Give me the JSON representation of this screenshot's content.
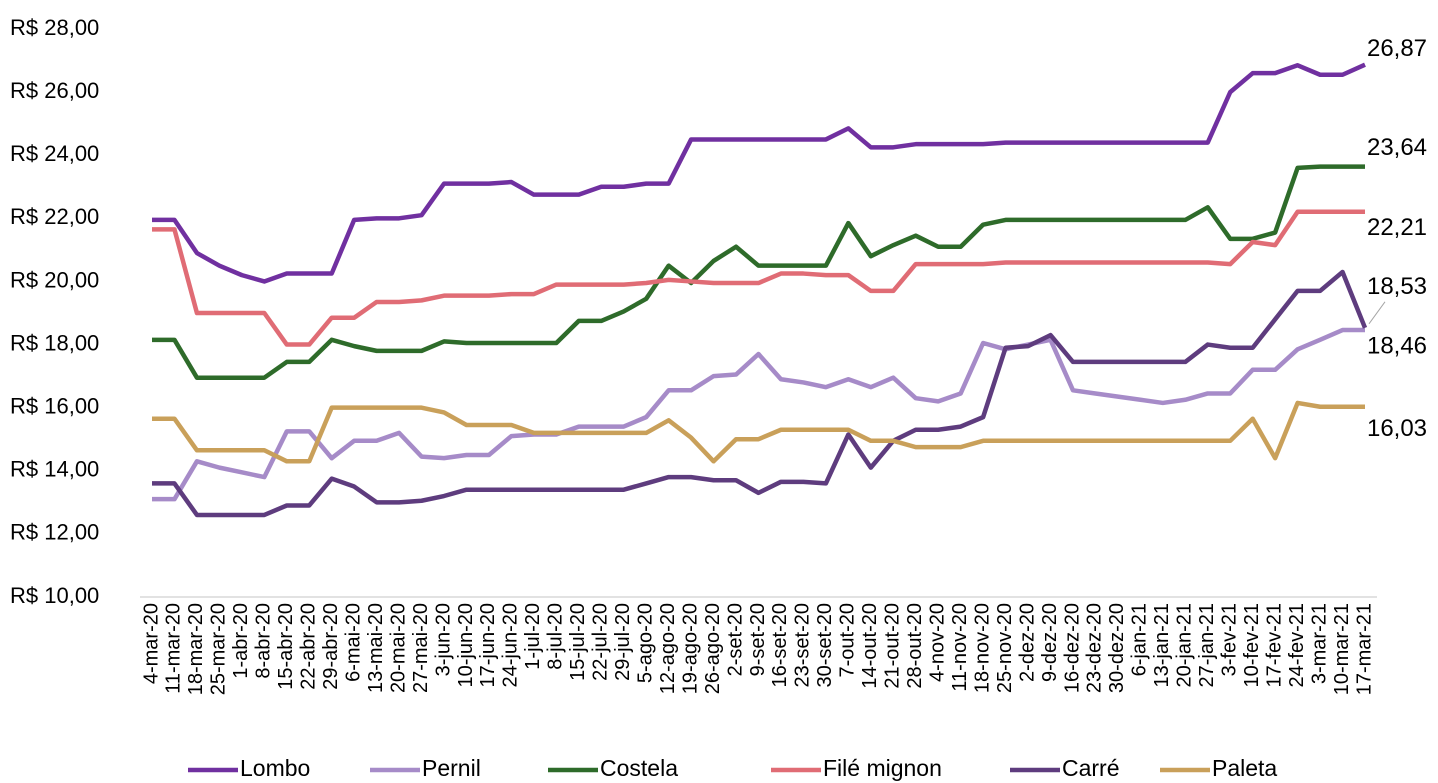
{
  "chart_data": {
    "type": "line",
    "categories": [
      "4-mar-20",
      "11-mar-20",
      "18-mar-20",
      "25-mar-20",
      "1-abr-20",
      "8-abr-20",
      "15-abr-20",
      "22-abr-20",
      "29-abr-20",
      "6-mai-20",
      "13-mai-20",
      "20-mai-20",
      "27-mai-20",
      "3-jun-20",
      "10-jun-20",
      "17-jun-20",
      "24-jun-20",
      "1-jul-20",
      "8-jul-20",
      "15-jul-20",
      "22-jul-20",
      "29-jul-20",
      "5-ago-20",
      "12-ago-20",
      "19-ago-20",
      "26-ago-20",
      "2-set-20",
      "9-set-20",
      "16-set-20",
      "23-set-20",
      "30-set-20",
      "7-out-20",
      "14-out-20",
      "21-out-20",
      "28-out-20",
      "4-nov-20",
      "11-nov-20",
      "18-nov-20",
      "25-nov-20",
      "2-dez-20",
      "9-dez-20",
      "16-dez-20",
      "23-dez-20",
      "30-dez-20",
      "6-jan-21",
      "13-jan-21",
      "20-jan-21",
      "27-jan-21",
      "3-fev-21",
      "10-fev-21",
      "17-fev-21",
      "24-fev-21",
      "3-mar-21",
      "10-mar-21",
      "17-mar-21"
    ],
    "ylim": [
      10,
      28
    ],
    "yticks": [
      {
        "value": 10,
        "label": "R$ 10,00"
      },
      {
        "value": 12,
        "label": "R$ 12,00"
      },
      {
        "value": 14,
        "label": "R$ 14,00"
      },
      {
        "value": 16,
        "label": "R$ 16,00"
      },
      {
        "value": 18,
        "label": "R$ 18,00"
      },
      {
        "value": 20,
        "label": "R$ 20,00"
      },
      {
        "value": 22,
        "label": "R$ 22,00"
      },
      {
        "value": 24,
        "label": "R$ 24,00"
      },
      {
        "value": 26,
        "label": "R$ 26,00"
      },
      {
        "value": 28,
        "label": "R$ 28,00"
      }
    ],
    "grid": false,
    "legend": "bottom",
    "series": [
      {
        "name": "Lombo",
        "color": "#7030a0",
        "values": [
          21.95,
          21.95,
          20.9,
          20.5,
          20.2,
          20.0,
          20.25,
          20.25,
          20.25,
          21.95,
          22.0,
          22.0,
          22.1,
          23.1,
          23.1,
          23.1,
          23.15,
          22.75,
          22.75,
          22.75,
          23.0,
          23.0,
          23.1,
          23.1,
          24.5,
          24.5,
          24.5,
          24.5,
          24.5,
          24.5,
          24.5,
          24.85,
          24.25,
          24.25,
          24.35,
          24.35,
          24.35,
          24.35,
          24.4,
          24.4,
          24.4,
          24.4,
          24.4,
          24.4,
          24.4,
          24.4,
          24.4,
          24.4,
          26.0,
          26.6,
          26.6,
          26.85,
          26.55,
          26.55,
          26.87
        ],
        "value_labels": [
          null,
          null,
          null,
          null,
          null,
          null,
          null,
          null,
          null,
          null,
          null,
          null,
          null,
          null,
          null,
          null,
          null,
          null,
          null,
          null,
          null,
          null,
          null,
          null,
          null,
          null,
          null,
          null,
          null,
          null,
          null,
          null,
          null,
          null,
          null,
          null,
          null,
          null,
          null,
          null,
          null,
          null,
          null,
          null,
          null,
          null,
          null,
          null,
          null,
          null,
          null,
          null,
          null,
          null,
          "26,87"
        ]
      },
      {
        "name": "Pernil",
        "color": "#a68bc8",
        "values": [
          13.1,
          13.1,
          14.3,
          14.1,
          13.95,
          13.8,
          15.25,
          15.25,
          14.4,
          14.95,
          14.95,
          15.2,
          14.45,
          14.4,
          14.5,
          14.5,
          15.1,
          15.15,
          15.15,
          15.4,
          15.4,
          15.4,
          15.7,
          16.55,
          16.55,
          17.0,
          17.05,
          17.7,
          16.9,
          16.8,
          16.65,
          16.9,
          16.65,
          16.95,
          16.3,
          16.2,
          16.45,
          18.05,
          17.85,
          18.0,
          18.15,
          16.55,
          16.45,
          16.35,
          16.25,
          16.15,
          16.25,
          16.45,
          16.45,
          17.2,
          17.2,
          17.85,
          18.15,
          18.46,
          18.46
        ],
        "value_labels": [
          null,
          null,
          null,
          null,
          null,
          null,
          null,
          null,
          null,
          null,
          null,
          null,
          null,
          null,
          null,
          null,
          null,
          null,
          null,
          null,
          null,
          null,
          null,
          null,
          null,
          null,
          null,
          null,
          null,
          null,
          null,
          null,
          null,
          null,
          null,
          null,
          null,
          null,
          null,
          null,
          null,
          null,
          null,
          null,
          null,
          null,
          null,
          null,
          null,
          null,
          null,
          null,
          null,
          null,
          "18,46"
        ]
      },
      {
        "name": "Costela",
        "color": "#2e6b2a",
        "values": [
          18.15,
          18.15,
          16.95,
          16.95,
          16.95,
          16.95,
          17.45,
          17.45,
          18.15,
          17.95,
          17.8,
          17.8,
          17.8,
          18.1,
          18.05,
          18.05,
          18.05,
          18.05,
          18.05,
          18.75,
          18.75,
          19.05,
          19.45,
          20.5,
          19.95,
          20.65,
          21.1,
          20.5,
          20.5,
          20.5,
          20.5,
          21.85,
          20.8,
          21.15,
          21.45,
          21.1,
          21.1,
          21.8,
          21.95,
          21.95,
          21.95,
          21.95,
          21.95,
          21.95,
          21.95,
          21.95,
          21.95,
          22.35,
          21.35,
          21.35,
          21.55,
          23.6,
          23.64,
          23.64,
          23.64
        ],
        "value_labels": [
          null,
          null,
          null,
          null,
          null,
          null,
          null,
          null,
          null,
          null,
          null,
          null,
          null,
          null,
          null,
          null,
          null,
          null,
          null,
          null,
          null,
          null,
          null,
          null,
          null,
          null,
          null,
          null,
          null,
          null,
          null,
          null,
          null,
          null,
          null,
          null,
          null,
          null,
          null,
          null,
          null,
          null,
          null,
          null,
          null,
          null,
          null,
          null,
          null,
          null,
          null,
          null,
          null,
          null,
          "23,64"
        ]
      },
      {
        "name": "Filé mignon",
        "color": "#e06c75",
        "values": [
          21.65,
          21.65,
          19.0,
          19.0,
          19.0,
          19.0,
          18.0,
          18.0,
          18.85,
          18.85,
          19.35,
          19.35,
          19.4,
          19.55,
          19.55,
          19.55,
          19.6,
          19.6,
          19.9,
          19.9,
          19.9,
          19.9,
          19.95,
          20.05,
          20.0,
          19.95,
          19.95,
          19.95,
          20.25,
          20.25,
          20.2,
          20.2,
          19.7,
          19.7,
          20.55,
          20.55,
          20.55,
          20.55,
          20.6,
          20.6,
          20.6,
          20.6,
          20.6,
          20.6,
          20.6,
          20.6,
          20.6,
          20.6,
          20.55,
          21.25,
          21.15,
          22.21,
          22.21,
          22.21,
          22.21
        ],
        "value_labels": [
          null,
          null,
          null,
          null,
          null,
          null,
          null,
          null,
          null,
          null,
          null,
          null,
          null,
          null,
          null,
          null,
          null,
          null,
          null,
          null,
          null,
          null,
          null,
          null,
          null,
          null,
          null,
          null,
          null,
          null,
          null,
          null,
          null,
          null,
          null,
          null,
          null,
          null,
          null,
          null,
          null,
          null,
          null,
          null,
          null,
          null,
          null,
          null,
          null,
          null,
          null,
          null,
          null,
          null,
          "22,21"
        ]
      },
      {
        "name": "Carré",
        "color": "#5e3c7e",
        "values": [
          13.6,
          13.6,
          12.6,
          12.6,
          12.6,
          12.6,
          12.9,
          12.9,
          13.75,
          13.5,
          13.0,
          13.0,
          13.05,
          13.2,
          13.4,
          13.4,
          13.4,
          13.4,
          13.4,
          13.4,
          13.4,
          13.4,
          13.6,
          13.8,
          13.8,
          13.7,
          13.7,
          13.3,
          13.65,
          13.65,
          13.6,
          15.15,
          14.1,
          14.95,
          15.3,
          15.3,
          15.4,
          15.7,
          17.9,
          17.95,
          18.3,
          17.45,
          17.45,
          17.45,
          17.45,
          17.45,
          17.45,
          18.0,
          17.9,
          17.9,
          18.8,
          19.7,
          19.7,
          20.3,
          18.53
        ],
        "value_labels": [
          null,
          null,
          null,
          null,
          null,
          null,
          null,
          null,
          null,
          null,
          null,
          null,
          null,
          null,
          null,
          null,
          null,
          null,
          null,
          null,
          null,
          null,
          null,
          null,
          null,
          null,
          null,
          null,
          null,
          null,
          null,
          null,
          null,
          null,
          null,
          null,
          null,
          null,
          null,
          null,
          null,
          null,
          null,
          null,
          null,
          null,
          null,
          null,
          null,
          null,
          null,
          null,
          null,
          null,
          "18,53"
        ]
      },
      {
        "name": "Paleta",
        "color": "#c9a05a",
        "values": [
          15.65,
          15.65,
          14.65,
          14.65,
          14.65,
          14.65,
          14.3,
          14.3,
          16.0,
          16.0,
          16.0,
          16.0,
          16.0,
          15.85,
          15.45,
          15.45,
          15.45,
          15.2,
          15.2,
          15.2,
          15.2,
          15.2,
          15.2,
          15.6,
          15.05,
          14.3,
          15.0,
          15.0,
          15.3,
          15.3,
          15.3,
          15.3,
          14.95,
          14.95,
          14.75,
          14.75,
          14.75,
          14.95,
          14.95,
          14.95,
          14.95,
          14.95,
          14.95,
          14.95,
          14.95,
          14.95,
          14.95,
          14.95,
          14.95,
          15.65,
          14.4,
          16.15,
          16.03,
          16.03,
          16.03
        ],
        "value_labels": [
          null,
          null,
          null,
          null,
          null,
          null,
          null,
          null,
          null,
          null,
          null,
          null,
          null,
          null,
          null,
          null,
          null,
          null,
          null,
          null,
          null,
          null,
          null,
          null,
          null,
          null,
          null,
          null,
          null,
          null,
          null,
          null,
          null,
          null,
          null,
          null,
          null,
          null,
          null,
          null,
          null,
          null,
          null,
          null,
          null,
          null,
          null,
          null,
          null,
          null,
          null,
          null,
          null,
          null,
          "16,03"
        ]
      }
    ]
  }
}
